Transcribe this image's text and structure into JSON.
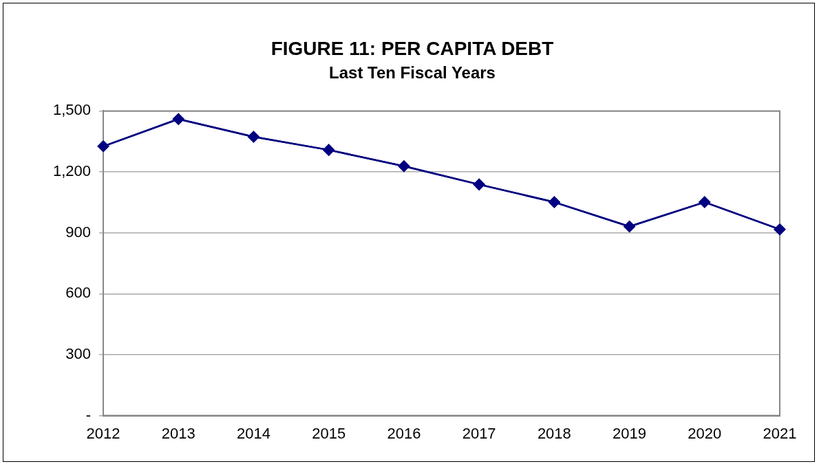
{
  "chart_data": {
    "type": "line",
    "title": "FIGURE 11: PER CAPITA DEBT",
    "subtitle": "Last Ten Fiscal Years",
    "categories": [
      "2012",
      "2013",
      "2014",
      "2015",
      "2016",
      "2017",
      "2018",
      "2019",
      "2020",
      "2021"
    ],
    "series": [
      {
        "color": "#000080",
        "values": [
          1326,
          1460,
          1373,
          1308,
          1228,
          1138,
          1051,
          931,
          1051,
          917
        ]
      }
    ],
    "ylim": [
      0,
      1500
    ],
    "yticks": [
      {
        "value": 0,
        "label": "-"
      },
      300,
      600,
      900,
      {
        "value": 1200,
        "label": "1,200"
      },
      {
        "value": 1500,
        "label": "1,500"
      }
    ],
    "grid": "y",
    "legend": false,
    "marker": "diamond",
    "line_style": "solid"
  }
}
